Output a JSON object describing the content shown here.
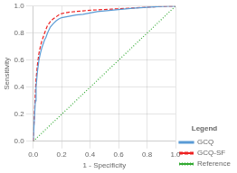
{
  "chart_data": {
    "type": "line",
    "xlabel": "1 - Specificity",
    "ylabel": "Sensitivity",
    "legend_title": "Legend",
    "legend": "lower right",
    "grid": true,
    "xlim": [
      0.0,
      1.0
    ],
    "ylim": [
      0.0,
      1.0
    ],
    "xticks": [
      {
        "value": 0.0,
        "label": "0.0"
      },
      {
        "value": 0.2,
        "label": "0.2"
      },
      {
        "value": 0.4,
        "label": "0.4"
      },
      {
        "value": 0.6,
        "label": "0.6"
      },
      {
        "value": 0.8,
        "label": "0.8"
      },
      {
        "value": 1.0,
        "label": "1.0"
      }
    ],
    "yticks": [
      {
        "value": 0.0,
        "label": "0.0"
      },
      {
        "value": 0.2,
        "label": "0.2"
      },
      {
        "value": 0.4,
        "label": "0.4"
      },
      {
        "value": 0.6,
        "label": "0.6"
      },
      {
        "value": 0.8,
        "label": "0.8"
      },
      {
        "value": 1.0,
        "label": "1.0"
      }
    ],
    "series": [
      {
        "name": "GCQ",
        "color": "#5b9bd5",
        "line_style": "solid",
        "x": [
          0.0,
          0.005,
          0.01,
          0.015,
          0.02,
          0.03,
          0.04,
          0.05,
          0.06,
          0.07,
          0.08,
          0.09,
          0.1,
          0.12,
          0.14,
          0.16,
          0.18,
          0.2,
          0.25,
          0.3,
          0.35,
          0.4,
          0.45,
          0.5,
          0.55,
          0.6,
          0.65,
          0.7,
          0.75,
          0.8,
          0.85,
          0.9,
          0.95,
          1.0
        ],
        "values": [
          0.0,
          0.1,
          0.2,
          0.3,
          0.4,
          0.52,
          0.6,
          0.65,
          0.69,
          0.72,
          0.75,
          0.77,
          0.8,
          0.845,
          0.87,
          0.89,
          0.905,
          0.915,
          0.925,
          0.935,
          0.94,
          0.95,
          0.96,
          0.965,
          0.97,
          0.975,
          0.98,
          0.984,
          0.988,
          0.991,
          0.994,
          0.997,
          0.999,
          1.0
        ]
      },
      {
        "name": "GCQ-SF",
        "color": "#ee2222",
        "line_style": "dashed",
        "x": [
          0.0,
          0.005,
          0.01,
          0.015,
          0.02,
          0.03,
          0.04,
          0.05,
          0.06,
          0.07,
          0.08,
          0.09,
          0.1,
          0.12,
          0.14,
          0.16,
          0.18,
          0.2,
          0.25,
          0.3,
          0.35,
          0.4,
          0.45,
          0.5,
          0.55,
          0.6,
          0.65,
          0.7,
          0.75,
          0.8,
          0.85,
          0.9,
          0.95,
          1.0
        ],
        "values": [
          0.0,
          0.12,
          0.24,
          0.36,
          0.46,
          0.57,
          0.65,
          0.7,
          0.74,
          0.77,
          0.8,
          0.83,
          0.855,
          0.885,
          0.905,
          0.92,
          0.935,
          0.945,
          0.955,
          0.96,
          0.965,
          0.97,
          0.972,
          0.975,
          0.978,
          0.98,
          0.983,
          0.986,
          0.989,
          0.992,
          0.995,
          0.997,
          0.999,
          1.0
        ]
      },
      {
        "name": "Reference",
        "color": "#33aa33",
        "line_style": "dotted",
        "x": [
          0,
          1
        ],
        "values": [
          0,
          1
        ]
      }
    ]
  }
}
